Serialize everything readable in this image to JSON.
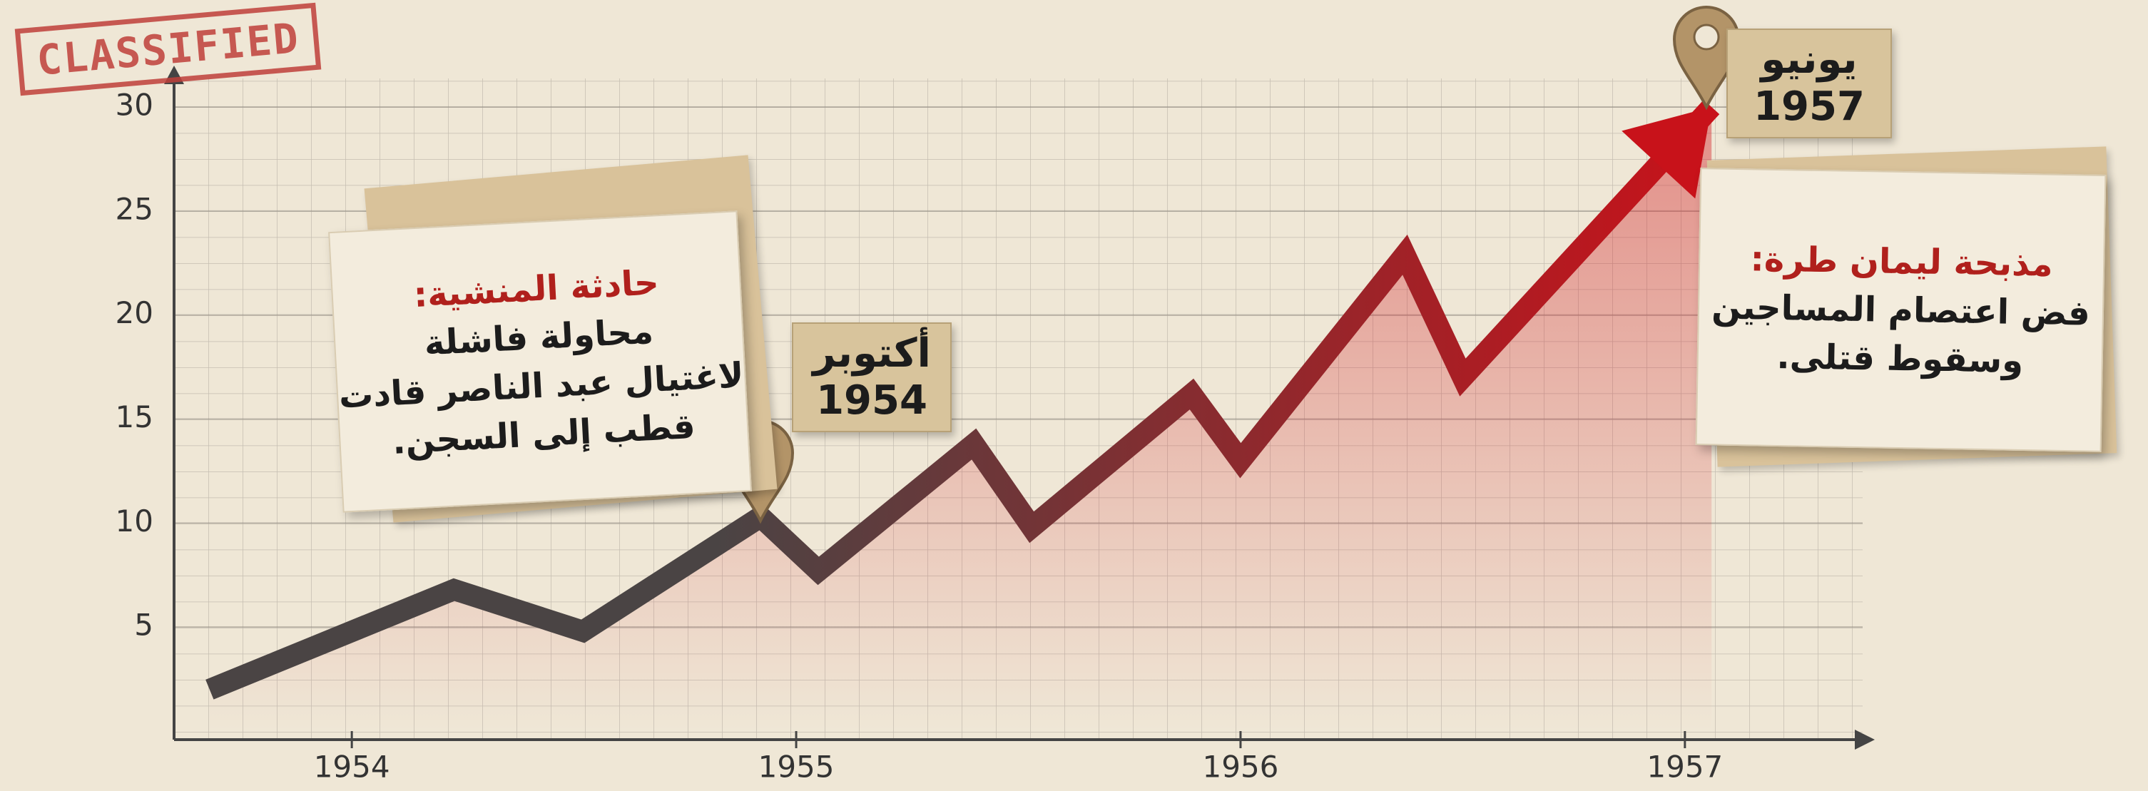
{
  "chart_data": {
    "type": "line",
    "x": [
      1953.68,
      1954.23,
      1954.52,
      1954.92,
      1955.05,
      1955.4,
      1955.53,
      1955.89,
      1956.0,
      1956.37,
      1956.5,
      1957.06
    ],
    "values": [
      2,
      6.8,
      4.8,
      10.3,
      7.7,
      13.8,
      9.8,
      16.2,
      13,
      22.9,
      17,
      30
    ],
    "xlim": [
      1953.6,
      1957.4
    ],
    "xticks": [
      1954,
      1955,
      1956,
      1957
    ],
    "ylim": [
      0,
      30
    ],
    "yticks": [
      5,
      10,
      15,
      20,
      25,
      30
    ],
    "color_start": "#4a4444",
    "color_end": "#c8121a",
    "annotations": [
      {
        "title": "حادثة المنشية:",
        "lines": [
          "محاولة فاشلة",
          "لاغتيال عبد الناصر قادت",
          "قطب إلى السجن."
        ],
        "tag": [
          "أكتوبر",
          "1954"
        ]
      },
      {
        "title": "مذبحة ليمان طرة:",
        "lines": [
          "فض اعتصام المساجين",
          "وسقوط قتلى."
        ],
        "tag": [
          "يونيو",
          "1957"
        ]
      }
    ],
    "stamp": "CLASSIFIED"
  }
}
